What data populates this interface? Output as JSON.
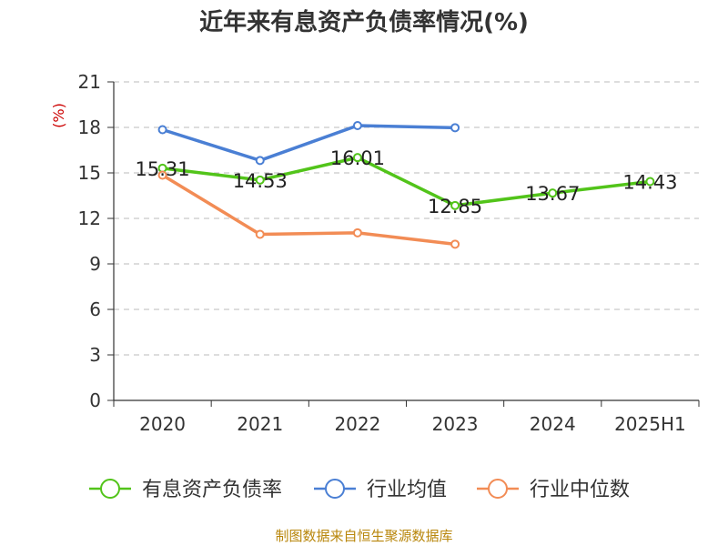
{
  "chart_data": {
    "type": "line",
    "title": "近年来有息资产负债率情况(%)",
    "ylabel": "(%)",
    "xlabel": "",
    "categories": [
      "2020",
      "2021",
      "2022",
      "2023",
      "2024",
      "2025H1"
    ],
    "ylim": [
      0,
      21
    ],
    "yticks": [
      0,
      3,
      6,
      9,
      12,
      15,
      18,
      21
    ],
    "grid": true,
    "legend_position": "bottom",
    "series": [
      {
        "name": "有息资产负债率",
        "color": "#52c41a",
        "values": [
          15.31,
          14.53,
          16.01,
          12.85,
          13.67,
          14.43
        ],
        "show_labels": true
      },
      {
        "name": "行业均值",
        "color": "#4a7fd4",
        "values": [
          17.85,
          15.82,
          18.12,
          17.98,
          null,
          null
        ],
        "show_labels": false
      },
      {
        "name": "行业中位数",
        "color": "#f28c55",
        "values": [
          14.85,
          10.95,
          11.05,
          10.3,
          null,
          null
        ],
        "show_labels": false
      }
    ]
  },
  "source_text": "制图数据来自恒生聚源数据库"
}
